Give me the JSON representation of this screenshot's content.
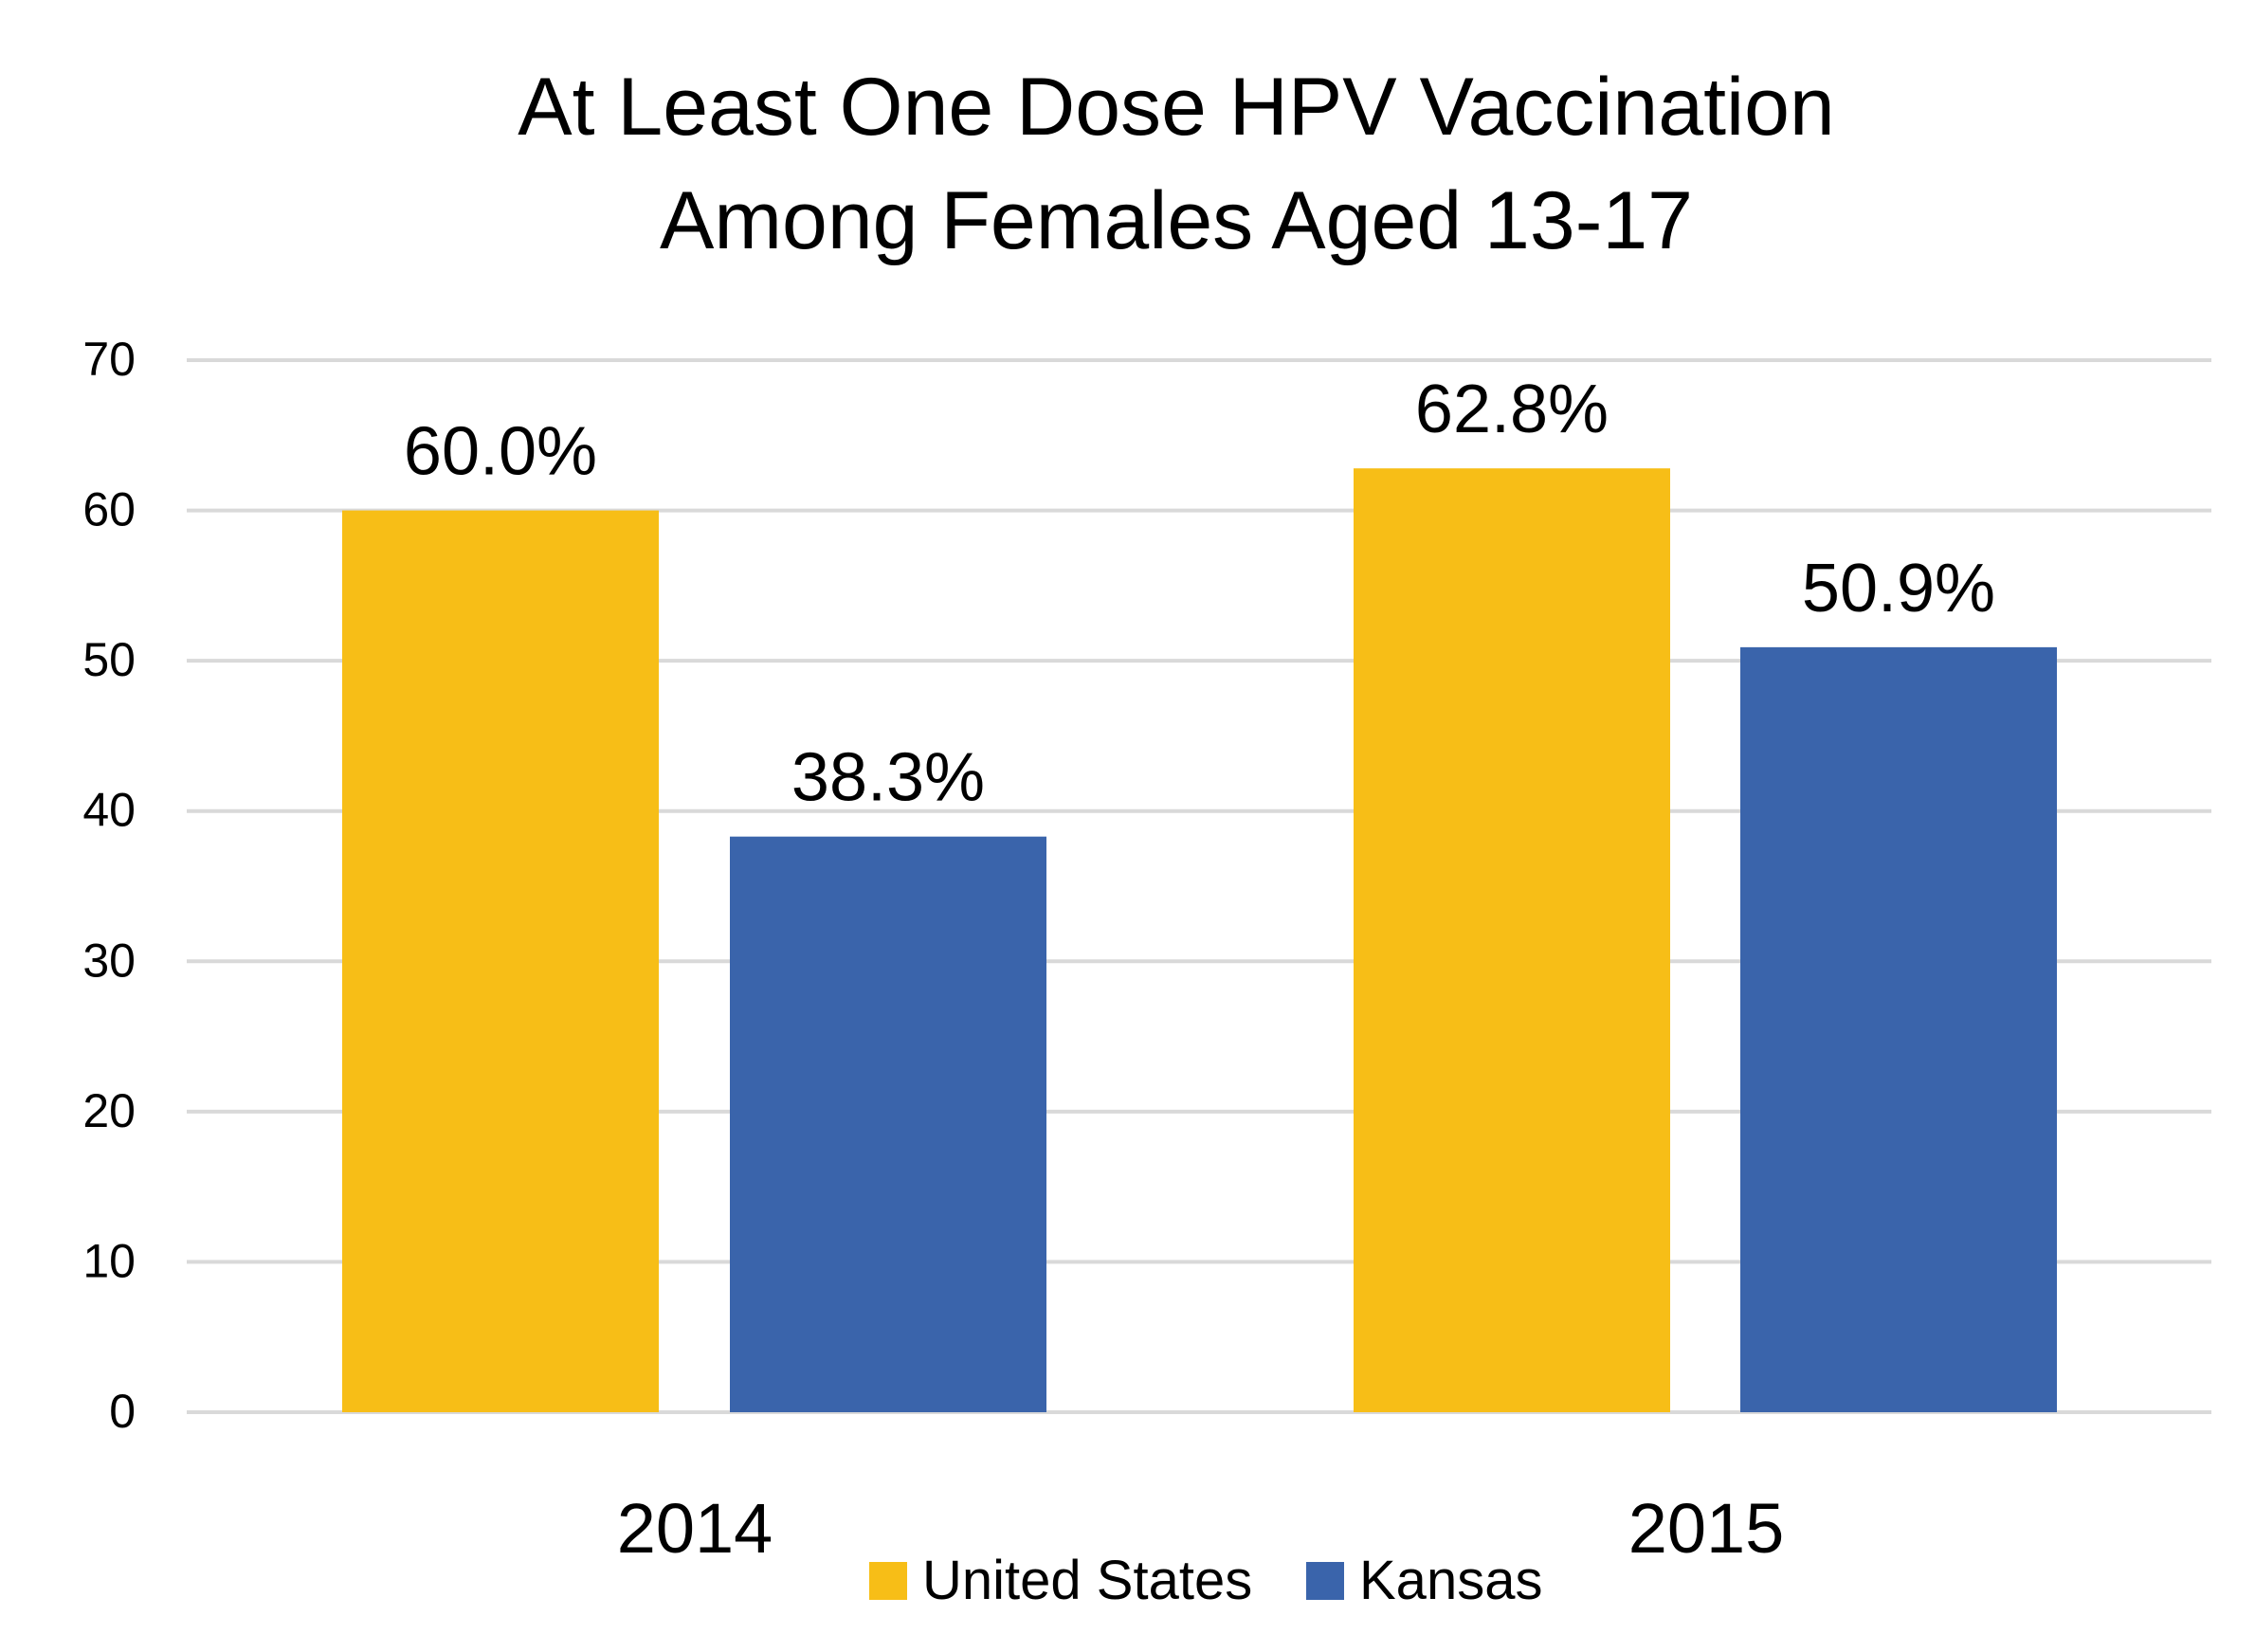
{
  "chart_data": {
    "type": "bar",
    "title_lines": [
      "At Least One Dose HPV Vaccination",
      "Among Females Aged 13-17"
    ],
    "categories": [
      "2014",
      "2015"
    ],
    "series": [
      {
        "name": "United States",
        "color": "#F7BE17",
        "values": [
          60.0,
          62.8
        ],
        "labels": [
          "60.0%",
          "62.8%"
        ]
      },
      {
        "name": "Kansas",
        "color": "#3A64AB",
        "values": [
          38.3,
          50.9
        ],
        "labels": [
          "38.3%",
          "50.9%"
        ]
      }
    ],
    "y_ticks": [
      "0",
      "10",
      "20",
      "30",
      "40",
      "50",
      "60",
      "70"
    ],
    "ylim": [
      0,
      70
    ],
    "grid": true,
    "legend_position": "bottom",
    "grid_color": "#D9D9D9"
  }
}
